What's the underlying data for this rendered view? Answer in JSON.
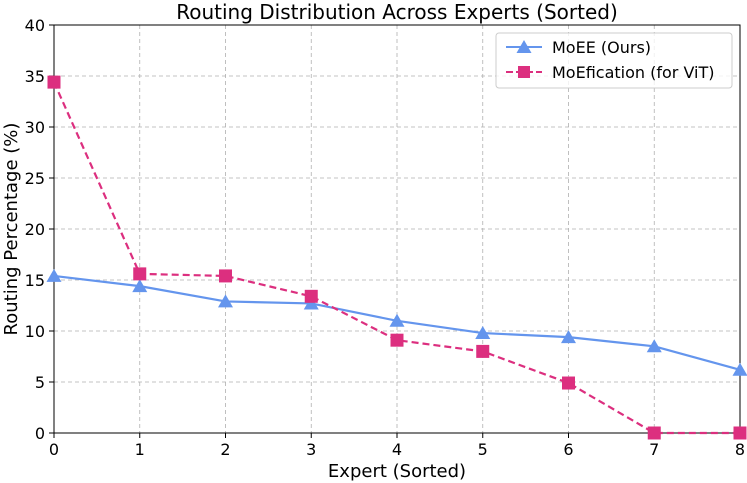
{
  "chart_data": {
    "type": "line",
    "title": "Routing Distribution Across Experts (Sorted)",
    "xlabel": "Expert (Sorted)",
    "ylabel": "Routing Percentage (%)",
    "x": [
      0,
      1,
      2,
      3,
      4,
      5,
      6,
      7,
      8
    ],
    "xlim": [
      0,
      8
    ],
    "ylim": [
      0,
      40
    ],
    "xticks": [
      "0",
      "1",
      "2",
      "3",
      "4",
      "5",
      "6",
      "7",
      "8"
    ],
    "yticks": [
      "0",
      "5",
      "10",
      "15",
      "20",
      "25",
      "30",
      "35",
      "40"
    ],
    "grid": true,
    "legend_position": "top-right",
    "series": [
      {
        "name": "MoEE (Ours)",
        "values": [
          15.4,
          14.4,
          12.9,
          12.7,
          11.0,
          9.8,
          9.4,
          8.5,
          6.2
        ],
        "color": "#6495ED",
        "marker": "triangle",
        "line": "solid"
      },
      {
        "name": "MoEfication (for ViT)",
        "values": [
          34.4,
          15.6,
          15.4,
          13.4,
          9.1,
          8.0,
          4.9,
          0.0,
          0.0
        ],
        "color": "#DC2F7F",
        "marker": "square",
        "line": "dashed"
      }
    ]
  }
}
